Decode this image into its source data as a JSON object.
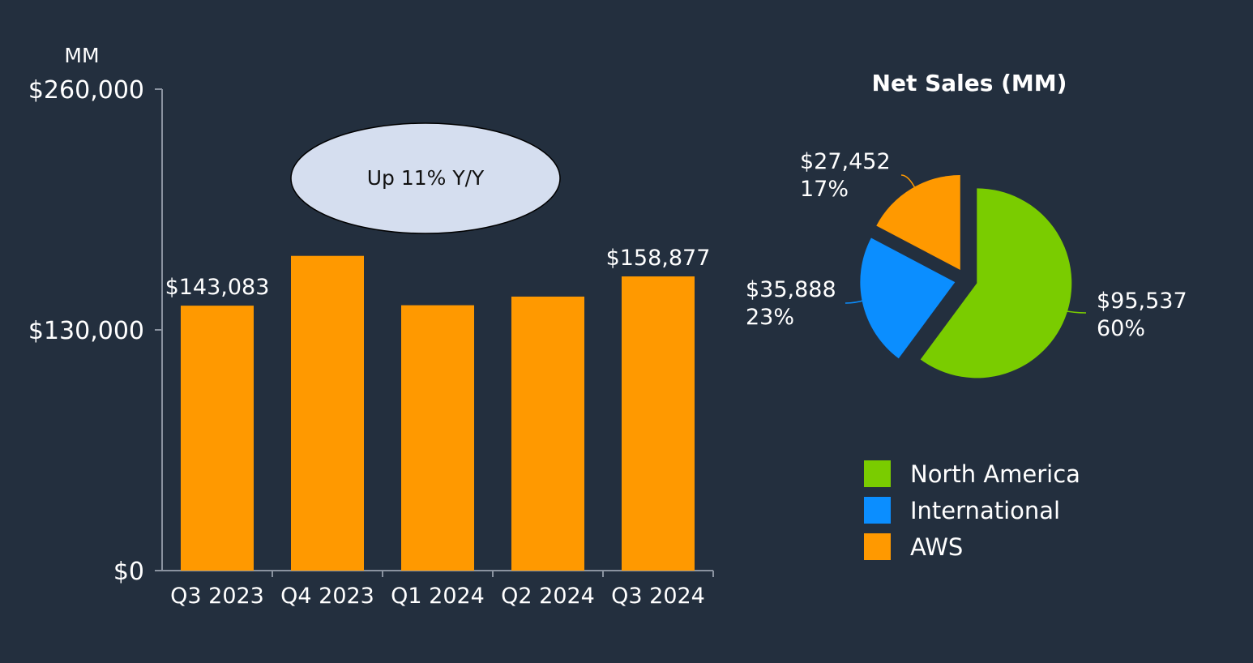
{
  "chart_data": [
    {
      "type": "bar",
      "unit_label": "MM",
      "categories": [
        "Q3 2023",
        "Q4 2023",
        "Q1 2024",
        "Q2 2024",
        "Q3 2024"
      ],
      "values": [
        143083,
        169961,
        143313,
        147977,
        158877
      ],
      "data_labels": [
        "$143,083",
        "",
        "",
        "",
        "$158,877"
      ],
      "ylim": [
        0,
        260000
      ],
      "y_ticks": [
        0,
        130000,
        260000
      ],
      "y_tick_labels": [
        "$0",
        "$130,000",
        "$260,000"
      ],
      "annotation": "Up 11% Y/Y",
      "colors": {
        "bar": "#ff9900",
        "annotation_fill": "#d5deef",
        "axis": "#8a93a0"
      }
    },
    {
      "type": "pie",
      "title": "Net Sales (MM)",
      "slices": [
        {
          "name": "North America",
          "value": 95537,
          "value_label": "$95,537",
          "percent_label": "60%",
          "color": "#7acc00"
        },
        {
          "name": "International",
          "value": 35888,
          "value_label": "$35,888",
          "percent_label": "23%",
          "color": "#0b8eff"
        },
        {
          "name": "AWS",
          "value": 27452,
          "value_label": "$27,452",
          "percent_label": "17%",
          "color": "#ff9900"
        }
      ],
      "legend_position": "bottom",
      "exploded": true
    }
  ]
}
